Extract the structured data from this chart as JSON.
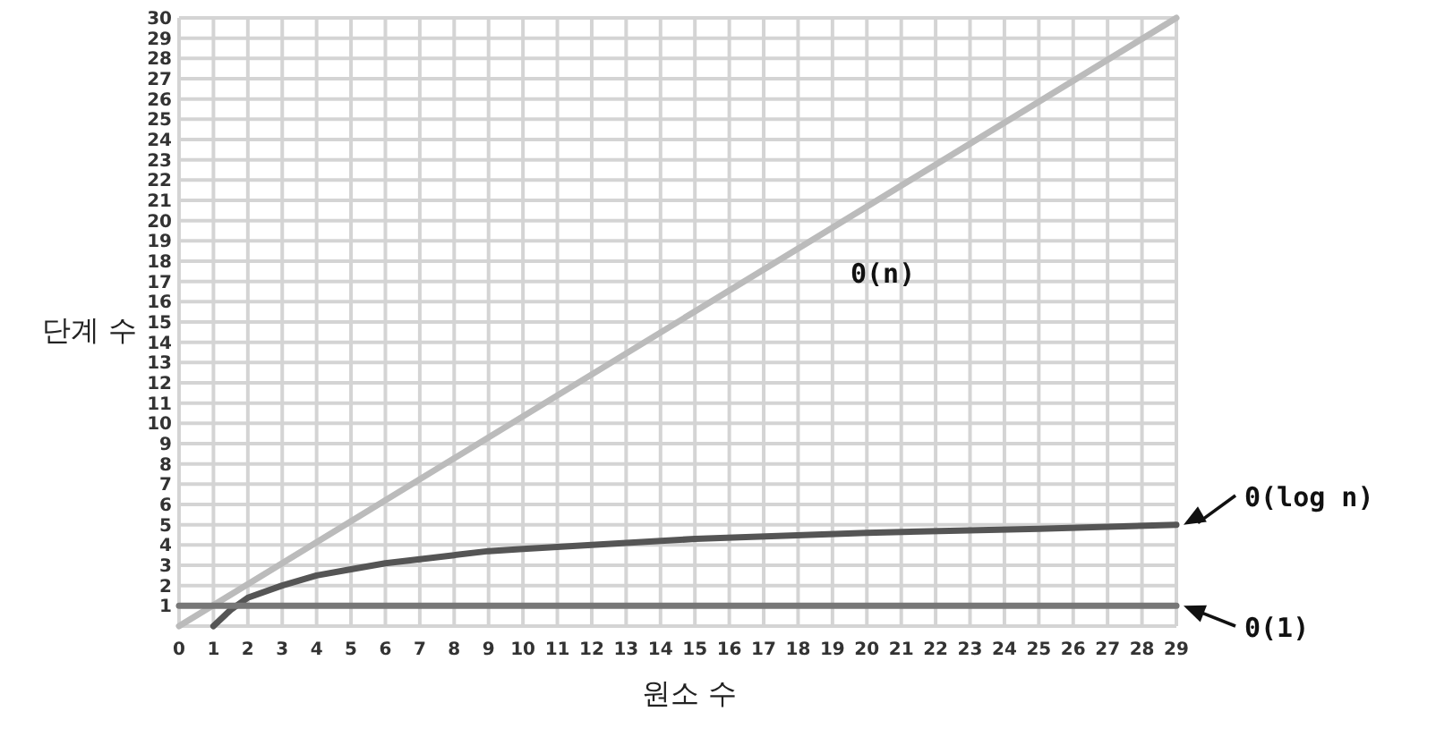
{
  "chart_data": {
    "type": "line",
    "xlabel": "원소 수",
    "ylabel": "단계 수",
    "xlim": [
      0,
      29
    ],
    "ylim": [
      0,
      30
    ],
    "xticks": [
      0,
      1,
      2,
      3,
      4,
      5,
      6,
      7,
      8,
      9,
      10,
      11,
      12,
      13,
      14,
      15,
      16,
      17,
      18,
      19,
      20,
      21,
      22,
      23,
      24,
      25,
      26,
      27,
      28,
      29
    ],
    "yticks": [
      {
        "value": 0,
        "label": null
      },
      1,
      2,
      3,
      4,
      5,
      6,
      7,
      8,
      9,
      10,
      11,
      12,
      13,
      14,
      15,
      16,
      17,
      18,
      19,
      20,
      21,
      22,
      23,
      24,
      25,
      26,
      27,
      28,
      29,
      30
    ],
    "grid": true,
    "marker": "none",
    "line_style": "solid",
    "series": [
      {
        "name": "0(n)",
        "color": "#bbbbbb",
        "x": [
          0,
          29
        ],
        "values": [
          0,
          30
        ]
      },
      {
        "name": "0(log n)",
        "color": "#555555",
        "x": [
          1,
          1.5,
          2,
          3,
          4,
          5,
          6,
          7,
          8,
          9,
          10,
          12,
          15,
          20,
          25,
          29
        ],
        "values": [
          0,
          0.8,
          1.4,
          2.0,
          2.5,
          2.8,
          3.1,
          3.3,
          3.5,
          3.7,
          3.8,
          4.0,
          4.3,
          4.6,
          4.8,
          5.0
        ]
      },
      {
        "name": "0(1)",
        "color": "#777777",
        "x": [
          0,
          29
        ],
        "values": [
          1,
          1
        ]
      }
    ]
  }
}
